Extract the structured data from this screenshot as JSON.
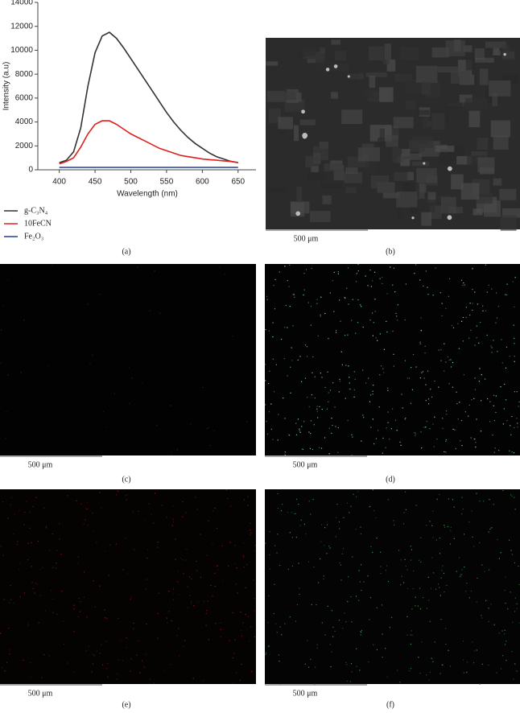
{
  "chart_data": {
    "type": "line",
    "xlabel": "Wavelength (nm)",
    "ylabel": "Intensity (a.u)",
    "x": [
      400,
      410,
      420,
      430,
      440,
      450,
      460,
      470,
      480,
      490,
      500,
      510,
      520,
      530,
      540,
      550,
      560,
      570,
      580,
      590,
      600,
      610,
      620,
      630,
      640,
      650
    ],
    "series": [
      {
        "name": "g-C₃N₄",
        "color": "#333333",
        "values": [
          600,
          800,
          1500,
          3500,
          7000,
          9800,
          11200,
          11500,
          11000,
          10200,
          9300,
          8400,
          7500,
          6600,
          5700,
          4800,
          4000,
          3300,
          2700,
          2200,
          1800,
          1400,
          1100,
          900,
          700,
          600
        ]
      },
      {
        "name": "10FeCN",
        "color": "#e0201b",
        "values": [
          500,
          700,
          1000,
          1900,
          3000,
          3800,
          4100,
          4100,
          3800,
          3400,
          3000,
          2700,
          2400,
          2100,
          1800,
          1600,
          1400,
          1200,
          1100,
          1000,
          900,
          850,
          800,
          750,
          700,
          600
        ]
      },
      {
        "name": "Fe₂O₃",
        "color": "#1f3f99",
        "values": [
          200,
          200,
          200,
          200,
          200,
          200,
          200,
          200,
          200,
          200,
          200,
          200,
          200,
          200,
          200,
          200,
          200,
          200,
          200,
          200,
          200,
          200,
          200,
          200,
          200,
          200
        ]
      }
    ],
    "xlim": [
      370,
      675
    ],
    "ylim": [
      0,
      14000
    ],
    "xticks": [
      400,
      450,
      500,
      550,
      600,
      650
    ],
    "yticks": [
      0,
      2000,
      4000,
      6000,
      8000,
      10000,
      12000,
      14000
    ]
  },
  "figure": {
    "panel_labels": [
      "(a)",
      "(b)",
      "(c)",
      "(d)",
      "(e)",
      "(f)"
    ],
    "scale_bars": [
      "500 μm",
      "500 μm",
      "500 μm",
      "500 μm",
      "500 μm"
    ]
  }
}
